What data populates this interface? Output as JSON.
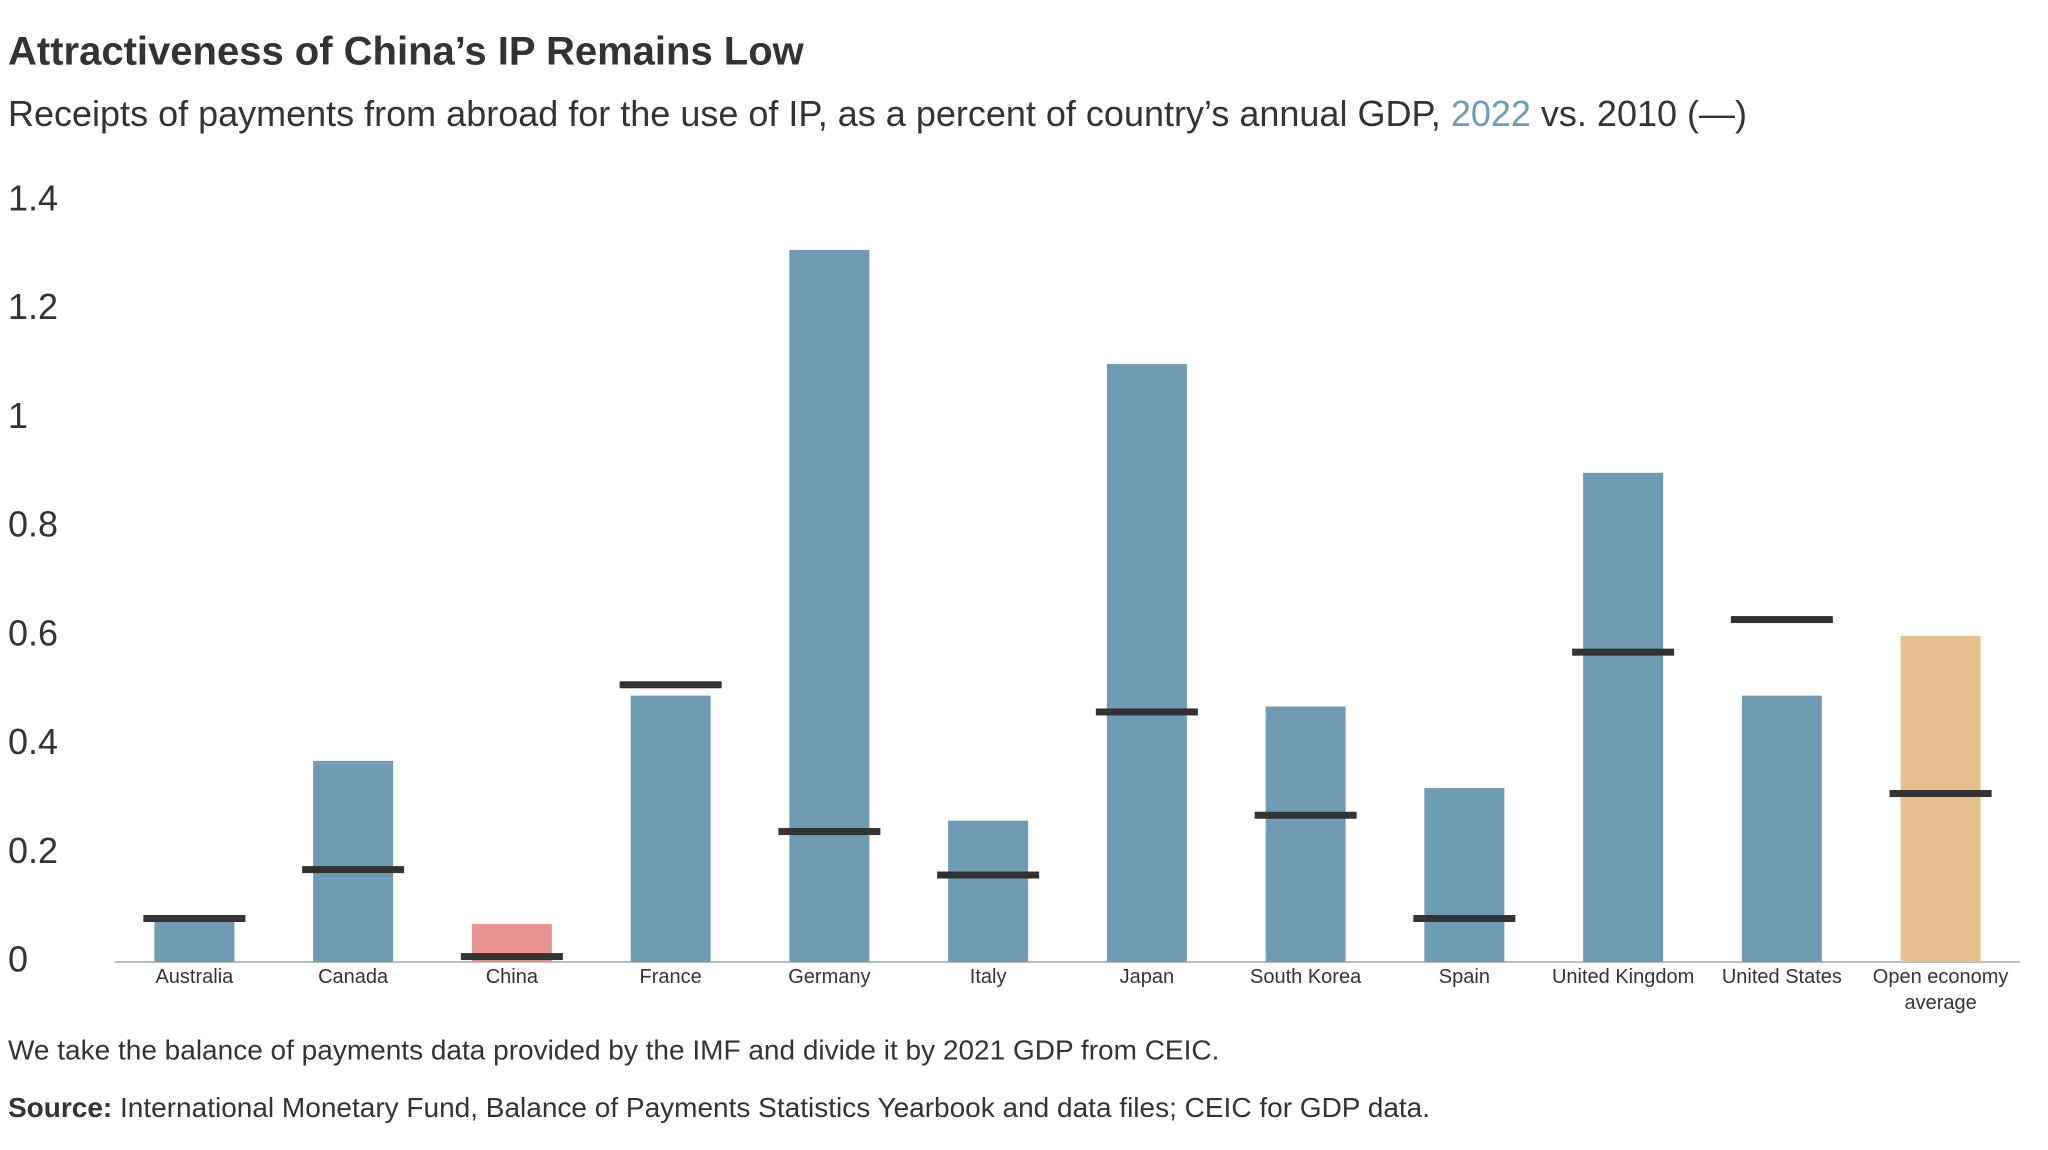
{
  "chart_data": {
    "type": "bar",
    "title": "Attractiveness of China’s IP Remains Low",
    "subtitle_parts": [
      "Receipts of payments from abroad for the use of IP, as a percent of country’s annual GDP, ",
      " vs. ",
      " (—)"
    ],
    "categories": [
      "Australia",
      "Canada",
      "China",
      "France",
      "Germany",
      "Italy",
      "Japan",
      "South Korea",
      "Spain",
      "United Kingdom",
      "United States",
      "Open economy average"
    ],
    "series": [
      {
        "name": "2022",
        "color": "#6f9bb3",
        "bar_colors": [
          "#6f9bb3",
          "#6f9bb3",
          "#e8938f",
          "#6f9bb3",
          "#6f9bb3",
          "#6f9bb3",
          "#6f9bb3",
          "#6f9bb3",
          "#6f9bb3",
          "#6f9bb3",
          "#6f9bb3",
          "#e8c08f"
        ],
        "values": [
          0.08,
          0.37,
          0.07,
          0.49,
          1.31,
          0.26,
          1.1,
          0.47,
          0.32,
          0.9,
          0.49,
          0.6
        ]
      },
      {
        "name": "2010",
        "color": "#333333",
        "values": [
          0.08,
          0.17,
          0.01,
          0.51,
          0.24,
          0.16,
          0.46,
          0.27,
          0.08,
          0.57,
          0.63,
          0.31
        ]
      }
    ],
    "ylim": [
      0,
      1.4
    ],
    "yticks": [
      0,
      0.2,
      0.4,
      0.6,
      0.8,
      1,
      1.2,
      1.4
    ],
    "note": "We take the balance of payments data provided by the IMF and divide it by 2021 GDP from CEIC.",
    "source_label": "Source:",
    "source": "International Monetary Fund, Balance of Payments Statistics Yearbook and data files; CEIC for GDP data."
  }
}
